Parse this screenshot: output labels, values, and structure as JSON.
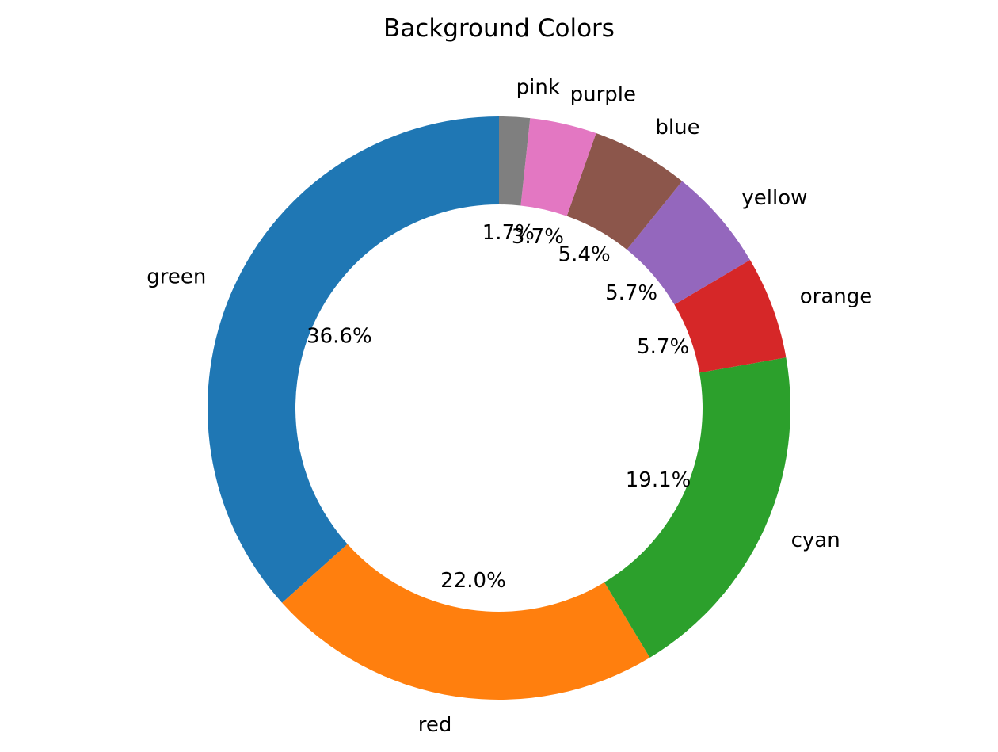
{
  "chart_data": {
    "type": "pie",
    "variant": "donut",
    "title": "Background Colors",
    "start_angle_deg": 90,
    "direction": "counterclockwise",
    "slices": [
      {
        "label": "green",
        "value": 36.6,
        "pct_label": "36.6%",
        "color": "#1f77b4"
      },
      {
        "label": "red",
        "value": 22.0,
        "pct_label": "22.0%",
        "color": "#ff7f0e"
      },
      {
        "label": "cyan",
        "value": 19.1,
        "pct_label": "19.1%",
        "color": "#2ca02c"
      },
      {
        "label": "orange",
        "value": 5.7,
        "pct_label": "5.7%",
        "color": "#d62728"
      },
      {
        "label": "yellow",
        "value": 5.7,
        "pct_label": "5.7%",
        "color": "#9467bd"
      },
      {
        "label": "blue",
        "value": 5.4,
        "pct_label": "5.4%",
        "color": "#8c564b"
      },
      {
        "label": "purple",
        "value": 3.7,
        "pct_label": "3.7%",
        "color": "#e377c2"
      },
      {
        "label": "pink",
        "value": 1.7,
        "pct_label": "1.7%",
        "color": "#7f7f7f"
      }
    ]
  }
}
